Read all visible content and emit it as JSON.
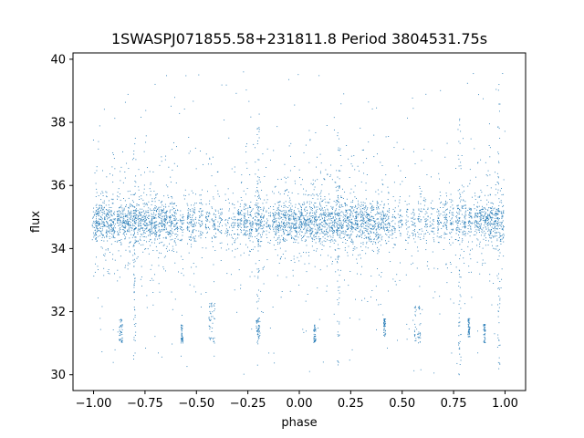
{
  "chart_data": {
    "type": "scatter",
    "title": "1SWASPJ071855.58+231811.8 Period 3804531.75s",
    "xlabel": "phase",
    "ylabel": "flux",
    "xlim": [
      -1.1,
      1.1
    ],
    "ylim": [
      29.5,
      40.2
    ],
    "xticks": [
      -1.0,
      -0.75,
      -0.5,
      -0.25,
      0.0,
      0.25,
      0.5,
      0.75,
      1.0
    ],
    "xtick_labels": [
      "−1.00",
      "−0.75",
      "−0.50",
      "−0.25",
      "0.00",
      "0.25",
      "0.50",
      "0.75",
      "1.00"
    ],
    "yticks": [
      30,
      32,
      34,
      36,
      38,
      40
    ],
    "ytick_labels": [
      "30",
      "32",
      "34",
      "36",
      "38",
      "40"
    ],
    "grid": false,
    "marker_color": "#1f77b4",
    "series": [
      {
        "baseline_flux": 34.85,
        "phase_range": [
          -1.0,
          1.0
        ],
        "dense_band": [
          34.0,
          35.6
        ],
        "outlier_range": [
          30.0,
          39.6
        ],
        "observation_clusters": [
          {
            "phase": -0.995,
            "density": 0.6
          },
          {
            "phase": -0.98,
            "density": 1.0
          },
          {
            "phase": -0.955,
            "density": 1.0
          },
          {
            "phase": -0.93,
            "density": 1.0
          },
          {
            "phase": -0.905,
            "density": 1.0
          },
          {
            "phase": -0.875,
            "density": 1.0
          },
          {
            "phase": -0.85,
            "density": 1.0
          },
          {
            "phase": -0.825,
            "density": 1.0
          },
          {
            "phase": -0.8,
            "density": 1.0
          },
          {
            "phase": -0.775,
            "density": 1.0
          },
          {
            "phase": -0.75,
            "density": 1.0
          },
          {
            "phase": -0.725,
            "density": 1.0
          },
          {
            "phase": -0.7,
            "density": 1.0
          },
          {
            "phase": -0.675,
            "density": 1.0
          },
          {
            "phase": -0.65,
            "density": 1.0
          },
          {
            "phase": -0.625,
            "density": 0.9
          },
          {
            "phase": -0.6,
            "density": 0.8
          },
          {
            "phase": -0.57,
            "density": 0.5
          },
          {
            "phase": -0.535,
            "density": 0.8
          },
          {
            "phase": -0.51,
            "density": 0.7
          },
          {
            "phase": -0.48,
            "density": 0.6
          },
          {
            "phase": -0.445,
            "density": 0.5
          },
          {
            "phase": -0.415,
            "density": 0.6
          },
          {
            "phase": -0.385,
            "density": 0.5
          },
          {
            "phase": -0.35,
            "density": 0.4
          },
          {
            "phase": -0.32,
            "density": 0.5
          },
          {
            "phase": -0.29,
            "density": 0.8
          },
          {
            "phase": -0.26,
            "density": 0.9
          },
          {
            "phase": -0.235,
            "density": 0.8
          },
          {
            "phase": -0.205,
            "density": 0.9
          },
          {
            "phase": -0.18,
            "density": 0.7
          },
          {
            "phase": -0.15,
            "density": 0.5
          },
          {
            "phase": -0.12,
            "density": 0.8
          },
          {
            "phase": -0.095,
            "density": 1.0
          },
          {
            "phase": -0.07,
            "density": 1.0
          },
          {
            "phase": -0.045,
            "density": 1.0
          },
          {
            "phase": -0.02,
            "density": 1.0
          },
          {
            "phase": 0.005,
            "density": 1.0
          },
          {
            "phase": 0.03,
            "density": 1.0
          },
          {
            "phase": 0.055,
            "density": 1.0
          },
          {
            "phase": 0.08,
            "density": 1.0
          },
          {
            "phase": 0.105,
            "density": 1.0
          },
          {
            "phase": 0.13,
            "density": 1.0
          },
          {
            "phase": 0.155,
            "density": 1.0
          },
          {
            "phase": 0.18,
            "density": 1.0
          },
          {
            "phase": 0.205,
            "density": 1.0
          },
          {
            "phase": 0.23,
            "density": 1.0
          },
          {
            "phase": 0.255,
            "density": 1.0
          },
          {
            "phase": 0.28,
            "density": 1.0
          },
          {
            "phase": 0.305,
            "density": 1.0
          },
          {
            "phase": 0.33,
            "density": 1.0
          },
          {
            "phase": 0.355,
            "density": 0.9
          },
          {
            "phase": 0.38,
            "density": 0.9
          },
          {
            "phase": 0.405,
            "density": 0.8
          },
          {
            "phase": 0.43,
            "density": 0.7
          },
          {
            "phase": 0.46,
            "density": 0.5
          },
          {
            "phase": 0.49,
            "density": 0.5
          },
          {
            "phase": 0.525,
            "density": 0.4
          },
          {
            "phase": 0.555,
            "density": 0.5
          },
          {
            "phase": 0.585,
            "density": 0.5
          },
          {
            "phase": 0.615,
            "density": 0.5
          },
          {
            "phase": 0.645,
            "density": 0.4
          },
          {
            "phase": 0.68,
            "density": 0.6
          },
          {
            "phase": 0.71,
            "density": 0.7
          },
          {
            "phase": 0.74,
            "density": 0.6
          },
          {
            "phase": 0.77,
            "density": 0.7
          },
          {
            "phase": 0.8,
            "density": 0.8
          },
          {
            "phase": 0.83,
            "density": 0.7
          },
          {
            "phase": 0.86,
            "density": 0.8
          },
          {
            "phase": 0.885,
            "density": 0.9
          },
          {
            "phase": 0.91,
            "density": 1.0
          },
          {
            "phase": 0.935,
            "density": 1.0
          },
          {
            "phase": 0.96,
            "density": 1.0
          },
          {
            "phase": 0.985,
            "density": 0.8
          }
        ],
        "dip_clusters": [
          {
            "phase_min": -0.44,
            "phase_max": -0.41,
            "flux_min": 31.0,
            "flux_max": 32.3
          },
          {
            "phase_min": -0.875,
            "phase_max": -0.86,
            "flux_min": 31.0,
            "flux_max": 31.8
          },
          {
            "phase_min": -0.575,
            "phase_max": -0.565,
            "flux_min": 31.0,
            "flux_max": 31.6
          },
          {
            "phase_min": -0.21,
            "phase_max": -0.19,
            "flux_min": 31.2,
            "flux_max": 31.8
          },
          {
            "phase_min": 0.07,
            "phase_max": 0.08,
            "flux_min": 31.0,
            "flux_max": 31.6
          },
          {
            "phase_min": 0.41,
            "phase_max": 0.42,
            "flux_min": 31.2,
            "flux_max": 31.8
          },
          {
            "phase_min": 0.56,
            "phase_max": 0.59,
            "flux_min": 31.0,
            "flux_max": 32.2
          },
          {
            "phase_min": 0.82,
            "phase_max": 0.83,
            "flux_min": 31.2,
            "flux_max": 31.8
          },
          {
            "phase_min": 0.895,
            "phase_max": 0.905,
            "flux_min": 31.0,
            "flux_max": 31.6
          }
        ],
        "vertical_streaks": [
          {
            "phase": -0.8,
            "flux_min": 30.2,
            "flux_max": 37.5
          },
          {
            "phase": -0.2,
            "flux_min": 30.0,
            "flux_max": 38.0
          },
          {
            "phase": 0.19,
            "flux_min": 30.2,
            "flux_max": 37.8
          },
          {
            "phase": 0.78,
            "flux_min": 30.0,
            "flux_max": 38.2
          },
          {
            "phase": 0.97,
            "flux_min": 30.0,
            "flux_max": 39.5
          }
        ]
      }
    ]
  }
}
